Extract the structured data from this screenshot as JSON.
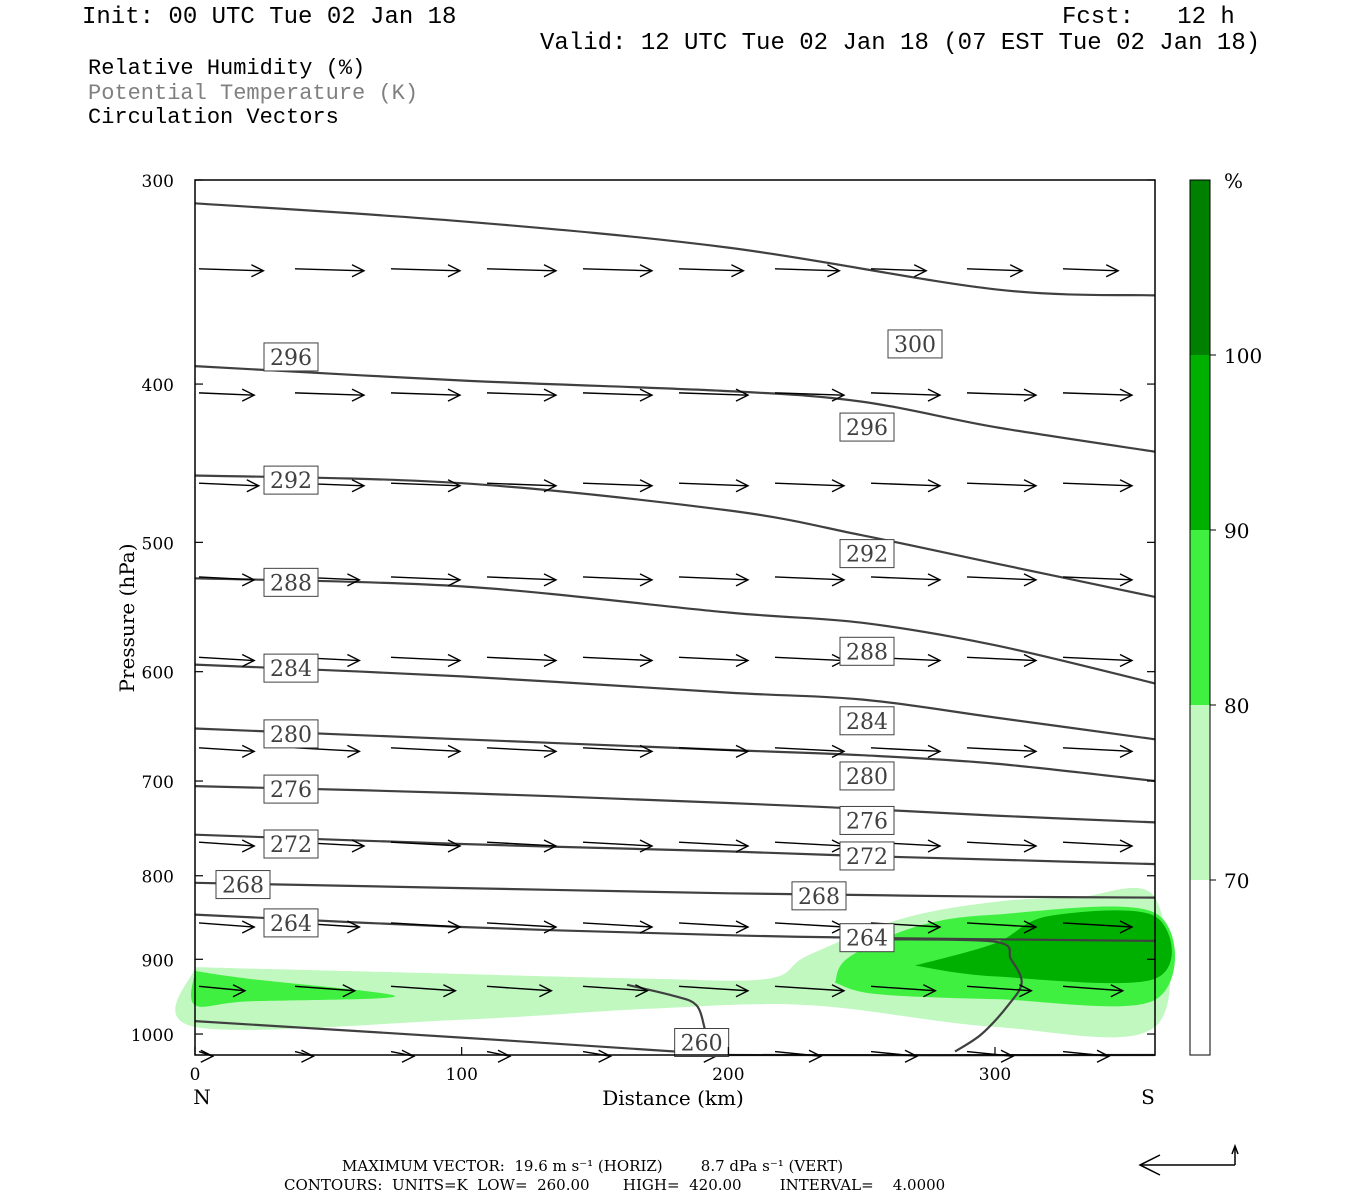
{
  "header": {
    "init": "Init: 00 UTC Tue 02 Jan 18",
    "fcst": "Fcst:   12 h",
    "valid": "Valid: 12 UTC Tue 02 Jan 18 (07 EST Tue 02 Jan 18)",
    "field1": "Relative Humidity (%)",
    "field2": "Potential Temperature (K)",
    "field3": "Circulation Vectors"
  },
  "colors": {
    "rh70": "#c0f8c0",
    "rh80": "#40f040",
    "rh90": "#00b000",
    "rh100": "#008000",
    "theta": "#404040",
    "field2_text": "#808080"
  },
  "chart_data": {
    "type": "cross-section contour",
    "xlabel": "Distance (km)",
    "ylabel": "Pressure (hPa)",
    "xlim": [
      0,
      360
    ],
    "ylim": [
      1030,
      300
    ],
    "y_scale": "log",
    "x_ticks": [
      "0",
      "100",
      "200",
      "300"
    ],
    "y_ticks": [
      "300",
      "400",
      "500",
      "600",
      "700",
      "800",
      "900",
      "1000"
    ],
    "x_end_labels": {
      "left": "N",
      "right": "S"
    },
    "colorbar": {
      "unit": "%",
      "levels": [
        "70",
        "80",
        "90",
        "100"
      ]
    },
    "theta_contours": [
      {
        "value": 300,
        "pts": [
          [
            0,
            310
          ],
          [
            100,
            318
          ],
          [
            200,
            330
          ],
          [
            300,
            350
          ],
          [
            360,
            353
          ]
        ]
      },
      {
        "value": 296,
        "pts": [
          [
            0,
            390
          ],
          [
            100,
            398
          ],
          [
            200,
            404
          ],
          [
            250,
            410
          ],
          [
            300,
            425
          ],
          [
            360,
            440
          ]
        ]
      },
      {
        "value": 292,
        "pts": [
          [
            0,
            455
          ],
          [
            100,
            460
          ],
          [
            200,
            478
          ],
          [
            250,
            495
          ],
          [
            300,
            515
          ],
          [
            360,
            540
          ]
        ]
      },
      {
        "value": 288,
        "pts": [
          [
            0,
            526
          ],
          [
            100,
            532
          ],
          [
            200,
            552
          ],
          [
            250,
            560
          ],
          [
            300,
            578
          ],
          [
            360,
            610
          ]
        ]
      },
      {
        "value": 284,
        "pts": [
          [
            0,
            594
          ],
          [
            100,
            604
          ],
          [
            200,
            618
          ],
          [
            250,
            624
          ],
          [
            300,
            640
          ],
          [
            360,
            660
          ]
        ]
      },
      {
        "value": 280,
        "pts": [
          [
            0,
            650
          ],
          [
            100,
            660
          ],
          [
            200,
            670
          ],
          [
            250,
            675
          ],
          [
            300,
            683
          ],
          [
            360,
            700
          ]
        ]
      },
      {
        "value": 276,
        "pts": [
          [
            0,
            705
          ],
          [
            100,
            712
          ],
          [
            200,
            722
          ],
          [
            250,
            728
          ],
          [
            300,
            735
          ],
          [
            360,
            742
          ]
        ]
      },
      {
        "value": 272,
        "pts": [
          [
            0,
            755
          ],
          [
            100,
            765
          ],
          [
            200,
            773
          ],
          [
            250,
            778
          ],
          [
            300,
            782
          ],
          [
            360,
            787
          ]
        ]
      },
      {
        "value": 268,
        "pts": [
          [
            0,
            808
          ],
          [
            100,
            814
          ],
          [
            200,
            820
          ],
          [
            250,
            822
          ],
          [
            300,
            824
          ],
          [
            360,
            825
          ]
        ]
      },
      {
        "value": 264,
        "pts": [
          [
            0,
            845
          ],
          [
            100,
            860
          ],
          [
            200,
            870
          ],
          [
            250,
            873
          ],
          [
            300,
            875
          ],
          [
            360,
            877
          ]
        ]
      },
      {
        "value": 260,
        "pts": [
          [
            0,
            982
          ],
          [
            100,
            1005
          ],
          [
            180,
            1025
          ],
          [
            200,
            1030
          ],
          [
            360,
            1030
          ]
        ]
      }
    ],
    "contour_labels": [
      {
        "text": "300",
        "x": 270,
        "p": 378
      },
      {
        "text": "296",
        "x": 36,
        "p": 385
      },
      {
        "text": "296",
        "x": 252,
        "p": 425
      },
      {
        "text": "292",
        "x": 36,
        "p": 458
      },
      {
        "text": "292",
        "x": 252,
        "p": 508
      },
      {
        "text": "288",
        "x": 36,
        "p": 529
      },
      {
        "text": "288",
        "x": 252,
        "p": 583
      },
      {
        "text": "284",
        "x": 36,
        "p": 597
      },
      {
        "text": "284",
        "x": 252,
        "p": 643
      },
      {
        "text": "280",
        "x": 36,
        "p": 655
      },
      {
        "text": "280",
        "x": 252,
        "p": 695
      },
      {
        "text": "276",
        "x": 36,
        "p": 708
      },
      {
        "text": "276",
        "x": 252,
        "p": 740
      },
      {
        "text": "272",
        "x": 36,
        "p": 765
      },
      {
        "text": "272",
        "x": 252,
        "p": 778
      },
      {
        "text": "268",
        "x": 18,
        "p": 810
      },
      {
        "text": "268",
        "x": 234,
        "p": 823
      },
      {
        "text": "264",
        "x": 36,
        "p": 855
      },
      {
        "text": "264",
        "x": 252,
        "p": 873
      },
      {
        "text": "260",
        "x": 190,
        "p": 1012
      }
    ],
    "rh_regions": [
      {
        "level": "rh70",
        "pts": [
          [
            0,
            910
          ],
          [
            90,
            918
          ],
          [
            170,
            925
          ],
          [
            215,
            925
          ],
          [
            230,
            895
          ],
          [
            265,
            850
          ],
          [
            300,
            830
          ],
          [
            330,
            825
          ],
          [
            360,
            825
          ],
          [
            360,
            990
          ],
          [
            300,
            990
          ],
          [
            230,
            960
          ],
          [
            170,
            965
          ],
          [
            100,
            980
          ],
          [
            0,
            990
          ]
        ]
      },
      {
        "level": "rh80",
        "pts": [
          [
            0,
            915
          ],
          [
            20,
            925
          ],
          [
            75,
            948
          ],
          [
            20,
            955
          ],
          [
            0,
            960
          ]
        ]
      },
      {
        "level": "rh80",
        "pts": [
          [
            240,
            930
          ],
          [
            245,
            898
          ],
          [
            270,
            860
          ],
          [
            300,
            845
          ],
          [
            360,
            843
          ],
          [
            360,
            953
          ],
          [
            300,
            952
          ],
          [
            255,
            945
          ]
        ]
      },
      {
        "level": "rh90",
        "pts": [
          [
            270,
            908
          ],
          [
            300,
            880
          ],
          [
            320,
            847
          ],
          [
            360,
            847
          ],
          [
            360,
            925
          ],
          [
            300,
            922
          ]
        ]
      }
    ],
    "theta_x_bend": [
      {
        "value": 260,
        "pts": [
          [
            162,
            933
          ],
          [
            180,
            948
          ],
          [
            188,
            960
          ],
          [
            191,
            990
          ],
          [
            192,
            1010
          ]
        ]
      },
      {
        "value": 260,
        "pts": [
          [
            256,
            875
          ],
          [
            300,
            878
          ],
          [
            306,
            900
          ],
          [
            310,
            930
          ],
          [
            305,
            960
          ],
          [
            295,
            1000
          ],
          [
            285,
            1025
          ]
        ]
      }
    ],
    "vector_rows": [
      {
        "p": 340,
        "u": [
          14,
          15,
          15,
          15,
          15,
          14,
          14,
          12,
          12,
          12
        ]
      },
      {
        "p": 405,
        "u": [
          12,
          15,
          15,
          15,
          15,
          15,
          15,
          15,
          15,
          15
        ]
      },
      {
        "p": 460,
        "u": [
          13,
          15,
          15,
          15,
          15,
          15,
          15,
          15,
          15,
          15
        ]
      },
      {
        "p": 525,
        "u": [
          12,
          14,
          15,
          15,
          15,
          15,
          15,
          15,
          15,
          15
        ]
      },
      {
        "p": 588,
        "u": [
          12,
          14,
          15,
          15,
          15,
          15,
          15,
          15,
          15,
          15
        ]
      },
      {
        "p": 668,
        "u": [
          12,
          14,
          15,
          15,
          15,
          15,
          15,
          15,
          15,
          15
        ]
      },
      {
        "p": 763,
        "u": [
          12,
          15,
          15,
          15,
          15,
          15,
          15,
          15,
          15,
          15
        ]
      },
      {
        "p": 855,
        "u": [
          12,
          14,
          15,
          15,
          15,
          15,
          15,
          15,
          15,
          15
        ]
      },
      {
        "p": 935,
        "u": [
          10,
          13,
          14,
          14,
          14,
          15,
          15,
          14,
          14,
          13
        ]
      },
      {
        "p": 1025,
        "u": [
          3,
          4,
          5,
          5,
          6,
          8,
          10,
          10,
          10,
          10
        ]
      }
    ]
  },
  "footer": {
    "max_vector": "MAXIMUM VECTOR:  19.6 m s⁻¹ (HORIZ)        8.7 dPa s⁻¹ (VERT)",
    "contours": "CONTOURS:  UNITS=K  LOW=  260.00       HIGH=  420.00        INTERVAL=    4.0000"
  }
}
